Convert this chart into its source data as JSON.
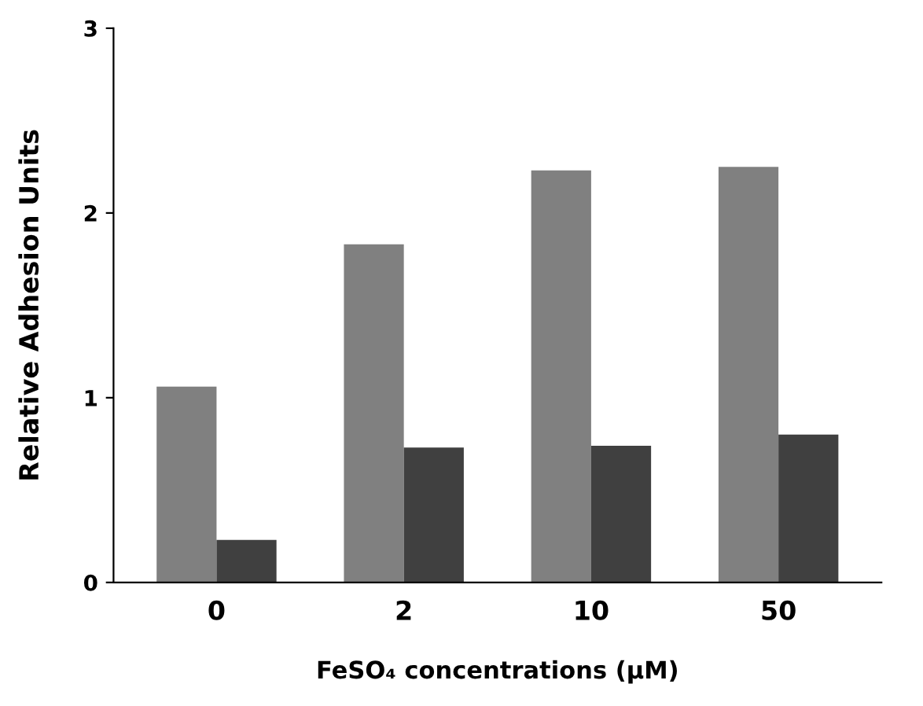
{
  "chart_data": {
    "type": "bar",
    "xlabel": "FeSO₄ concentrations (µM)",
    "ylabel": "Relative Adhesion Units",
    "categories": [
      "0",
      "2",
      "10",
      "50"
    ],
    "series": [
      {
        "color": "#808080",
        "values": [
          1.06,
          1.83,
          2.23,
          2.25
        ]
      },
      {
        "color": "#404040",
        "values": [
          0.23,
          0.73,
          0.74,
          0.8
        ]
      }
    ],
    "ylim": [
      0,
      3
    ],
    "yticks": [
      0,
      1,
      2,
      3
    ],
    "grid": false
  }
}
